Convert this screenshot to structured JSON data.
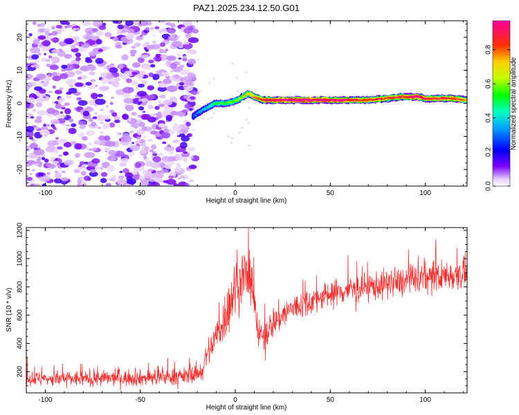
{
  "title": "PAZ1.2025.234.12.50.G01",
  "chart_data": [
    {
      "type": "heatmap",
      "xlabel": "Height of straight line (km)",
      "ylabel": "Frequency (Hz)",
      "xlim": [
        -110,
        122
      ],
      "ylim": [
        -25,
        25
      ],
      "xticks": [
        -100,
        -50,
        0,
        50,
        100
      ],
      "yticks": [
        -20,
        -10,
        0,
        10,
        20
      ],
      "noise_region": {
        "x_range": [
          -110,
          -23
        ],
        "description_values": "scattered low-amplitude noise"
      },
      "ridge": {
        "x": [
          -22,
          -20,
          -17,
          -14,
          -11,
          -8,
          -5,
          -2,
          1,
          4,
          7,
          10,
          15,
          20,
          30,
          40,
          50,
          60,
          70,
          80,
          88,
          92,
          96,
          100,
          105,
          110,
          115,
          122
        ],
        "frequency": [
          -4,
          -3,
          -2,
          -1,
          0,
          0,
          0,
          0.5,
          1,
          2,
          3,
          2,
          1,
          1,
          1,
          1,
          1,
          1,
          1,
          1.5,
          2,
          2,
          2,
          1.5,
          1.5,
          1.5,
          1.5,
          1
        ],
        "amplitude": [
          0.25,
          0.3,
          0.35,
          0.4,
          0.45,
          0.5,
          0.5,
          0.55,
          0.55,
          0.6,
          0.7,
          0.75,
          0.85,
          0.9,
          0.95,
          0.95,
          0.9,
          0.85,
          0.8,
          0.8,
          0.8,
          0.85,
          0.9,
          0.85,
          0.8,
          0.8,
          0.8,
          0.75
        ]
      }
    },
    {
      "type": "line",
      "xlabel": "Height of straight line (km)",
      "ylabel": "SNR (10 * v/v)",
      "xlim": [
        -110,
        122
      ],
      "ylim": [
        50,
        1220
      ],
      "xticks": [
        -100,
        -50,
        0,
        50,
        100
      ],
      "yticks": [
        200,
        400,
        600,
        800,
        1000,
        1200
      ],
      "trend": {
        "x": [
          -110,
          -80,
          -50,
          -25,
          -18,
          -15,
          -10,
          -5,
          0,
          5,
          10,
          12,
          15,
          20,
          30,
          40,
          50,
          60,
          70,
          80,
          90,
          100,
          110,
          122
        ],
        "y": [
          150,
          150,
          155,
          170,
          200,
          320,
          450,
          600,
          800,
          900,
          700,
          450,
          450,
          550,
          650,
          700,
          750,
          780,
          800,
          820,
          840,
          860,
          880,
          900
        ],
        "spread": [
          50,
          50,
          50,
          55,
          60,
          90,
          120,
          160,
          200,
          180,
          160,
          100,
          100,
          100,
          90,
          90,
          90,
          90,
          90,
          95,
          100,
          100,
          100,
          100
        ]
      },
      "line_color": "#f03030",
      "num_samples": 1400
    }
  ],
  "colorbar": {
    "label": "Normalized spectral amplitude",
    "ticks": [
      0.0,
      0.2,
      0.4,
      0.6,
      0.8
    ],
    "tick_labels": [
      "0.0",
      "0.2",
      "0.4",
      "0.6",
      "0.8"
    ],
    "range": [
      0,
      0.97
    ]
  }
}
